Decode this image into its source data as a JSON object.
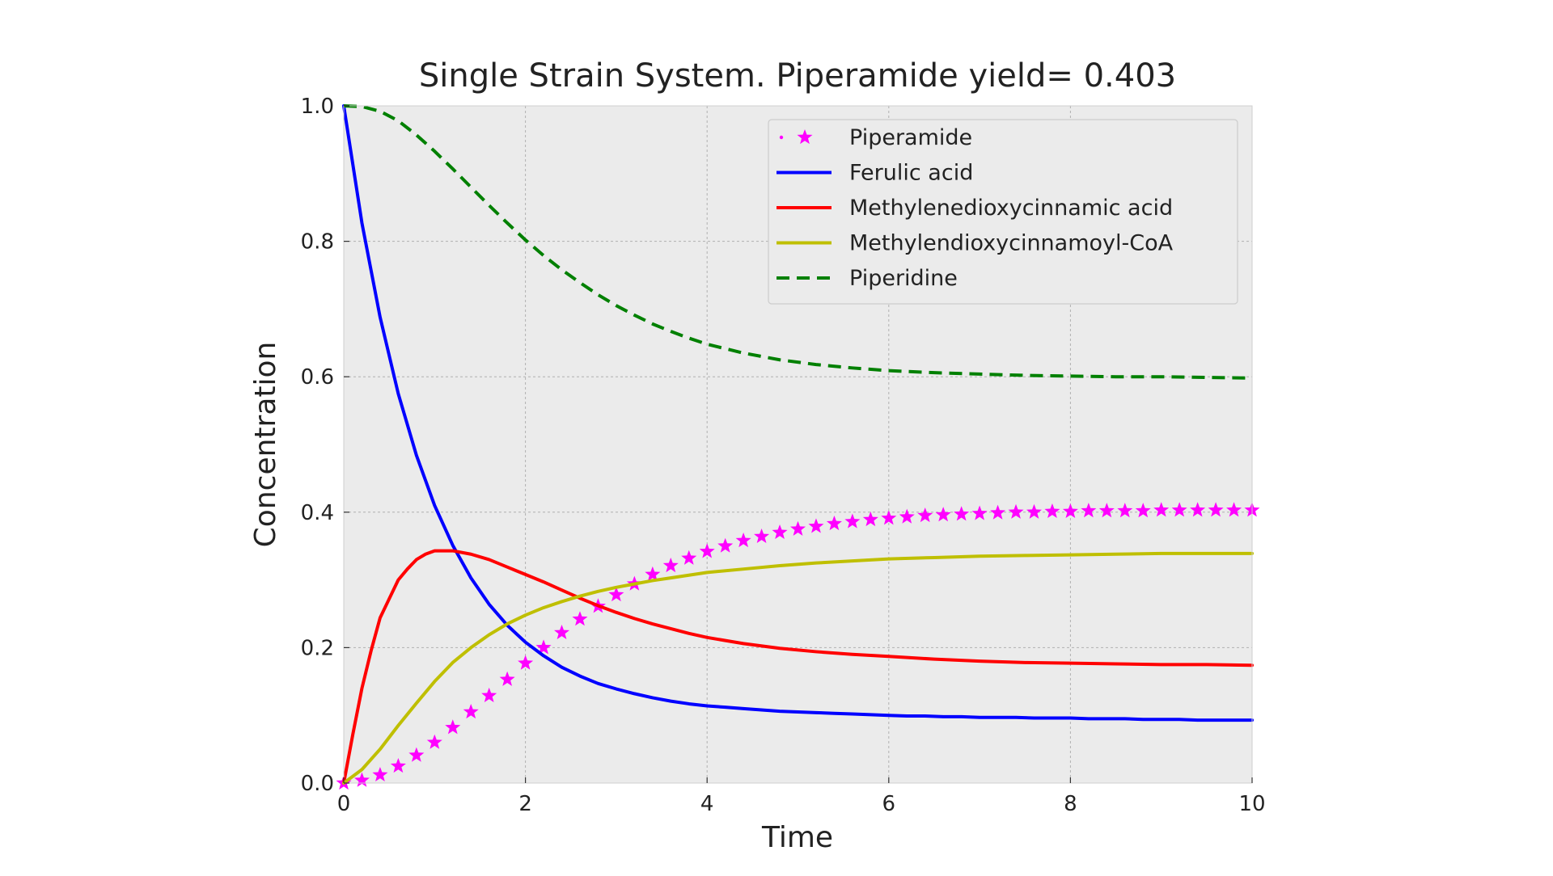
{
  "chart_data": {
    "type": "line",
    "title": "Single Strain System. Piperamide yield= 0.403",
    "xlabel": "Time",
    "ylabel": "Concentration",
    "xlim": [
      0,
      10
    ],
    "ylim": [
      0,
      1.0
    ],
    "xticks": [
      0,
      2,
      4,
      6,
      8,
      10
    ],
    "xtick_labels": [
      "0",
      "2",
      "4",
      "6",
      "8",
      "10"
    ],
    "yticks": [
      0.0,
      0.2,
      0.4,
      0.6,
      0.8,
      1.0
    ],
    "ytick_labels": [
      "0.0",
      "0.2",
      "0.4",
      "0.6",
      "0.8",
      "1.0"
    ],
    "grid": true,
    "legend_position": "top-right",
    "background": "#ebebeb",
    "series": [
      {
        "name": "Piperamide",
        "style": "star-markers",
        "color": "#ff00ff",
        "x": [
          0,
          0.2,
          0.4,
          0.6,
          0.8,
          1.0,
          1.2,
          1.4,
          1.6,
          1.8,
          2.0,
          2.2,
          2.4,
          2.6,
          2.8,
          3.0,
          3.2,
          3.4,
          3.6,
          3.8,
          4.0,
          4.2,
          4.4,
          4.6,
          4.8,
          5.0,
          5.2,
          5.4,
          5.6,
          5.8,
          6.0,
          6.2,
          6.4,
          6.6,
          6.8,
          7.0,
          7.2,
          7.4,
          7.6,
          7.8,
          8.0,
          8.2,
          8.4,
          8.6,
          8.8,
          9.0,
          9.2,
          9.4,
          9.6,
          9.8,
          10.0
        ],
        "y": [
          0.0,
          0.004,
          0.012,
          0.025,
          0.041,
          0.06,
          0.082,
          0.105,
          0.129,
          0.153,
          0.177,
          0.2,
          0.222,
          0.242,
          0.261,
          0.278,
          0.294,
          0.308,
          0.321,
          0.332,
          0.342,
          0.35,
          0.358,
          0.364,
          0.37,
          0.375,
          0.379,
          0.383,
          0.386,
          0.389,
          0.391,
          0.393,
          0.395,
          0.396,
          0.397,
          0.398,
          0.399,
          0.4,
          0.4,
          0.401,
          0.401,
          0.402,
          0.402,
          0.402,
          0.402,
          0.403,
          0.403,
          0.403,
          0.403,
          0.403,
          0.403
        ]
      },
      {
        "name": "Ferulic acid",
        "style": "solid",
        "color": "#0000ff",
        "x": [
          0,
          0.2,
          0.4,
          0.6,
          0.8,
          1.0,
          1.2,
          1.4,
          1.6,
          1.8,
          2.0,
          2.2,
          2.4,
          2.6,
          2.8,
          3.0,
          3.2,
          3.4,
          3.6,
          3.8,
          4.0,
          4.2,
          4.4,
          4.6,
          4.8,
          5.0,
          5.2,
          5.4,
          5.6,
          5.8,
          6.0,
          6.2,
          6.4,
          6.6,
          6.8,
          7.0,
          7.2,
          7.4,
          7.6,
          7.8,
          8.0,
          8.2,
          8.4,
          8.6,
          8.8,
          9.0,
          9.2,
          9.4,
          9.6,
          9.8,
          10.0
        ],
        "y": [
          1.0,
          0.827,
          0.688,
          0.575,
          0.484,
          0.41,
          0.351,
          0.303,
          0.264,
          0.233,
          0.208,
          0.188,
          0.171,
          0.158,
          0.147,
          0.139,
          0.132,
          0.126,
          0.121,
          0.117,
          0.114,
          0.112,
          0.11,
          0.108,
          0.106,
          0.105,
          0.104,
          0.103,
          0.102,
          0.101,
          0.1,
          0.099,
          0.099,
          0.098,
          0.098,
          0.097,
          0.097,
          0.097,
          0.096,
          0.096,
          0.096,
          0.095,
          0.095,
          0.095,
          0.094,
          0.094,
          0.094,
          0.093,
          0.093,
          0.093,
          0.093
        ]
      },
      {
        "name": "Methylenedioxycinnamic acid",
        "style": "solid",
        "color": "#ff0000",
        "x": [
          0,
          0.1,
          0.2,
          0.3,
          0.4,
          0.5,
          0.6,
          0.7,
          0.8,
          0.9,
          1.0,
          1.2,
          1.4,
          1.6,
          1.8,
          2.0,
          2.2,
          2.4,
          2.6,
          2.8,
          3.0,
          3.2,
          3.4,
          3.6,
          3.8,
          4.0,
          4.4,
          4.8,
          5.2,
          5.6,
          6.0,
          6.5,
          7.0,
          7.5,
          8.0,
          8.5,
          9.0,
          9.5,
          10.0
        ],
        "y": [
          0.0,
          0.072,
          0.14,
          0.195,
          0.244,
          0.272,
          0.3,
          0.316,
          0.33,
          0.338,
          0.343,
          0.343,
          0.338,
          0.33,
          0.319,
          0.308,
          0.297,
          0.285,
          0.273,
          0.262,
          0.252,
          0.243,
          0.235,
          0.228,
          0.221,
          0.215,
          0.206,
          0.199,
          0.194,
          0.19,
          0.187,
          0.183,
          0.18,
          0.178,
          0.177,
          0.176,
          0.175,
          0.175,
          0.174
        ]
      },
      {
        "name": "Methylendioxycinnamoyl-CoA",
        "style": "solid",
        "color": "#bfbf00",
        "x": [
          0,
          0.2,
          0.4,
          0.6,
          0.8,
          1.0,
          1.2,
          1.4,
          1.6,
          1.8,
          2.0,
          2.2,
          2.4,
          2.6,
          2.8,
          3.0,
          3.2,
          3.4,
          3.6,
          3.8,
          4.0,
          4.4,
          4.8,
          5.2,
          5.6,
          6.0,
          6.5,
          7.0,
          7.5,
          8.0,
          8.5,
          9.0,
          9.5,
          10.0
        ],
        "y": [
          0.0,
          0.02,
          0.05,
          0.085,
          0.118,
          0.15,
          0.178,
          0.2,
          0.219,
          0.235,
          0.248,
          0.259,
          0.268,
          0.276,
          0.283,
          0.289,
          0.294,
          0.299,
          0.303,
          0.307,
          0.311,
          0.316,
          0.321,
          0.325,
          0.328,
          0.331,
          0.333,
          0.335,
          0.336,
          0.337,
          0.338,
          0.339,
          0.339,
          0.339
        ]
      },
      {
        "name": "Piperidine",
        "style": "dashed",
        "color": "#008000",
        "x": [
          0,
          0.2,
          0.4,
          0.6,
          0.8,
          1.0,
          1.2,
          1.4,
          1.6,
          1.8,
          2.0,
          2.2,
          2.4,
          2.6,
          2.8,
          3.0,
          3.2,
          3.4,
          3.6,
          3.8,
          4.0,
          4.4,
          4.8,
          5.2,
          5.6,
          6.0,
          6.5,
          7.0,
          7.5,
          8.0,
          8.5,
          9.0,
          9.5,
          10.0
        ],
        "y": [
          1.0,
          0.999,
          0.992,
          0.978,
          0.957,
          0.933,
          0.907,
          0.88,
          0.853,
          0.827,
          0.802,
          0.779,
          0.758,
          0.739,
          0.721,
          0.705,
          0.691,
          0.678,
          0.667,
          0.657,
          0.648,
          0.635,
          0.625,
          0.618,
          0.613,
          0.609,
          0.606,
          0.604,
          0.602,
          0.601,
          0.6,
          0.6,
          0.599,
          0.598
        ]
      }
    ]
  }
}
